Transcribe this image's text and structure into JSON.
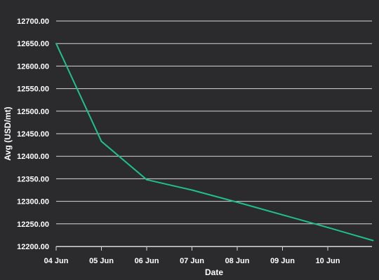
{
  "colors": {
    "background": "#2b2b2d",
    "grid": "#d8d8d8",
    "series": "#1fc08a",
    "text": "#ffffff"
  },
  "chart_data": {
    "type": "line",
    "title": "",
    "xlabel": "Date",
    "ylabel": "Avg (USD/mt)",
    "ylim": [
      12200,
      12700
    ],
    "yticks": [
      "12700.00",
      "12650.00",
      "12600.00",
      "12550.00",
      "12500.00",
      "12450.00",
      "12400.00",
      "12350.00",
      "12300.00",
      "12250.00",
      "12200.00"
    ],
    "xticks": [
      "04 Jun",
      "05 Jun",
      "06 Jun",
      "07 Jun",
      "08 Jun",
      "09 Jun",
      "10 Jun"
    ],
    "grid": true,
    "legend": "none",
    "series": [
      {
        "x": [
          "04 Jun",
          "05 Jun",
          "06 Jun",
          "07 Jun",
          "08 Jun",
          "09 Jun",
          "10 Jun",
          "11 Jun"
        ],
        "values": [
          12650,
          12433,
          12348,
          12325,
          12298,
          12270,
          12242,
          12213
        ]
      }
    ]
  }
}
